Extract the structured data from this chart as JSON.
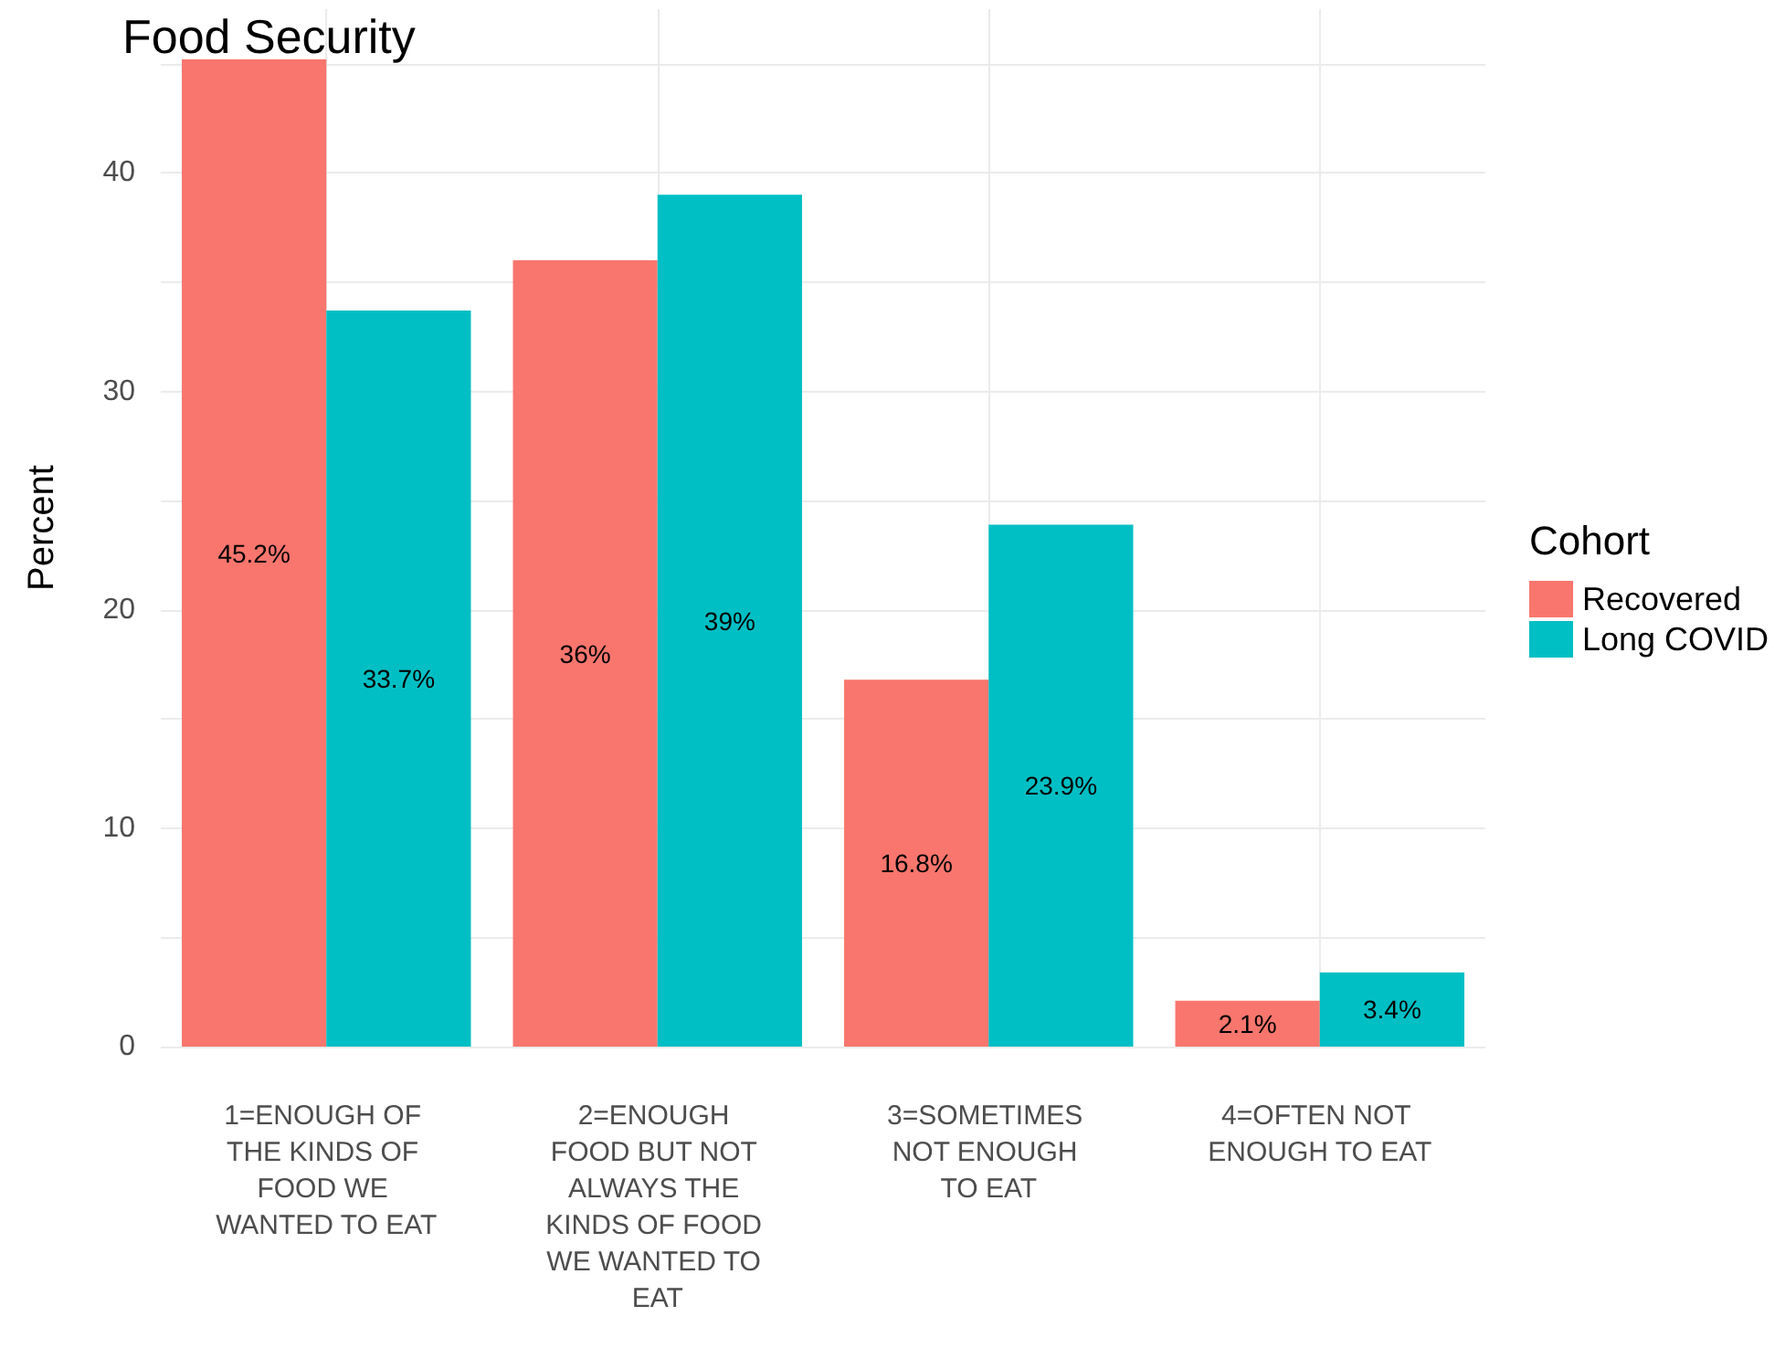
{
  "chart_data": {
    "type": "bar",
    "title": "Food Security",
    "ylabel": "Percent",
    "legend_title": "Cohort",
    "categories": [
      "1=ENOUGH OF THE KINDS OF FOOD WE WANTED TO EAT",
      "2=ENOUGH FOOD BUT NOT ALWAYS THE KINDS OF FOOD WE WANTED TO EAT",
      "3=SOMETIMES NOT ENOUGH TO EAT",
      "4=OFTEN NOT ENOUGH TO EAT"
    ],
    "series": [
      {
        "name": "Recovered",
        "color": "#f8766d",
        "values": [
          45.2,
          36,
          16.8,
          2.1
        ],
        "value_labels": [
          "45.2%",
          "36%",
          "16.8%",
          "2.1%"
        ]
      },
      {
        "name": "Long COVID",
        "color": "#00bfc4",
        "values": [
          33.7,
          39,
          23.9,
          3.4
        ],
        "value_labels": [
          "33.7%",
          "39%",
          "23.9%",
          "3.4%"
        ]
      }
    ],
    "ylim": [
      0,
      47.5
    ],
    "yticks": [
      0,
      {
        "value": 5,
        "label": null
      },
      10,
      {
        "value": 15,
        "label": null
      },
      20,
      {
        "value": 25,
        "label": null
      },
      30,
      {
        "value": 35,
        "label": null
      },
      40,
      {
        "value": 45,
        "label": null
      }
    ],
    "grid": true,
    "legend": "right"
  }
}
